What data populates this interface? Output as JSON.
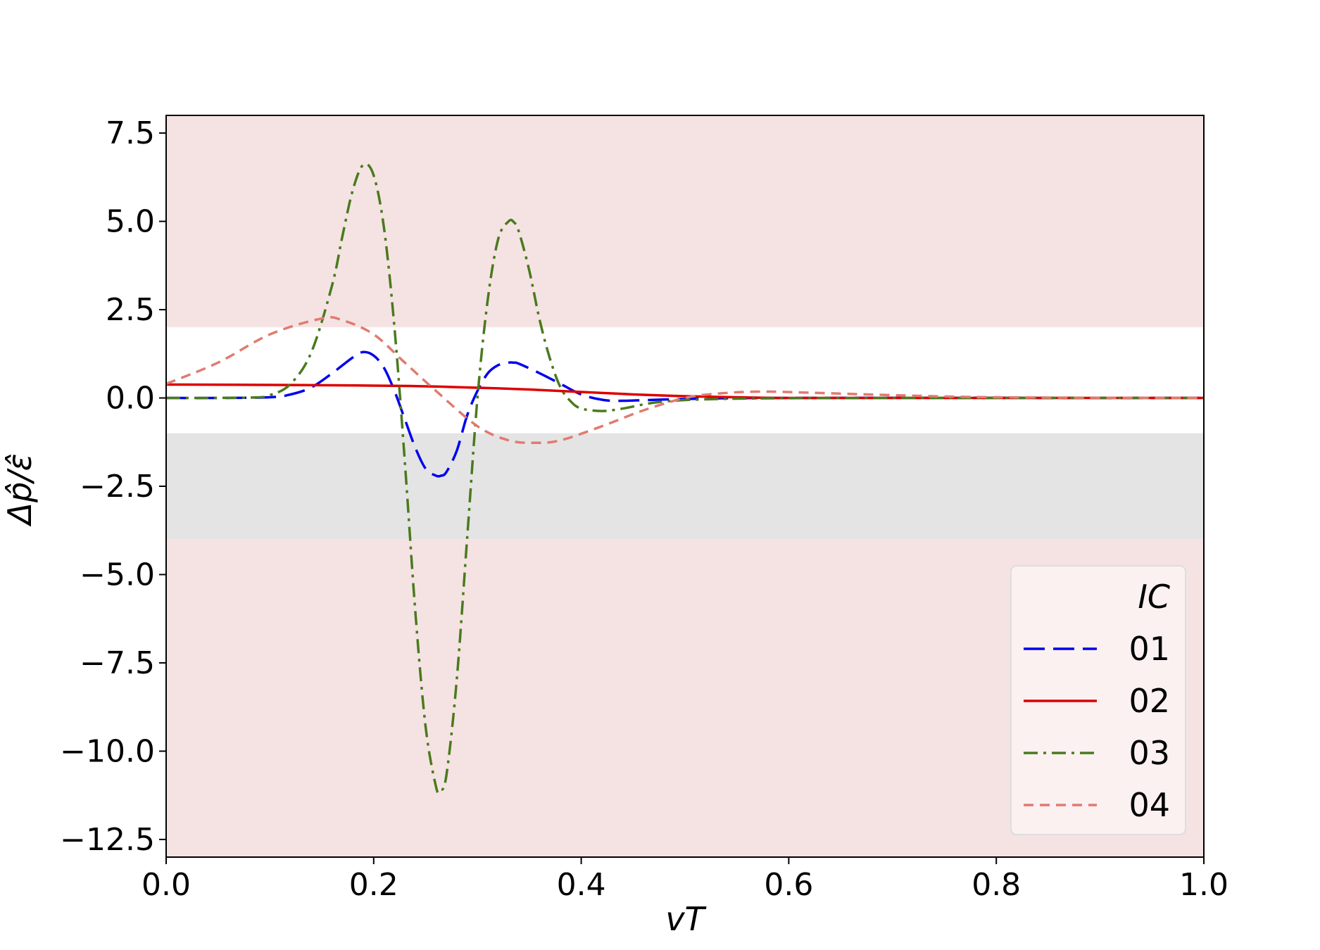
{
  "chart_data": {
    "type": "line",
    "title": "",
    "xlabel": "vT",
    "ylabel": "Δp̂/ε̂",
    "xlim": [
      0.0,
      1.0
    ],
    "ylim": [
      -13.0,
      8.0
    ],
    "xticks": [
      0.0,
      0.2,
      0.4,
      0.6,
      0.8,
      1.0
    ],
    "xtick_labels": [
      "0.0",
      "0.2",
      "0.4",
      "0.6",
      "0.8",
      "1.0"
    ],
    "yticks": [
      7.5,
      5.0,
      2.5,
      0.0,
      -2.5,
      -5.0,
      -7.5,
      -10.0,
      -12.5
    ],
    "ytick_labels": [
      "7.5",
      "5.0",
      "2.5",
      "0.0",
      "−2.5",
      "−5.0",
      "−7.5",
      "−10.0",
      "−12.5"
    ],
    "grid": false,
    "bands": [
      {
        "ymin": 2.0,
        "ymax": 8.0,
        "color": "#f5e3e3"
      },
      {
        "ymin": -1.0,
        "ymax": 2.0,
        "color": "#ffffff"
      },
      {
        "ymin": -4.0,
        "ymax": -1.0,
        "color": "#e4e4e4"
      },
      {
        "ymin": -13.0,
        "ymax": -4.0,
        "color": "#f5e3e3"
      }
    ],
    "legend": {
      "title": "IC",
      "placement": "lower-right"
    },
    "series": [
      {
        "name": "01",
        "color": "#0000ee",
        "dash": "long-dash",
        "x": [
          0.0,
          0.05,
          0.1,
          0.12,
          0.14,
          0.16,
          0.18,
          0.19,
          0.2,
          0.21,
          0.22,
          0.23,
          0.24,
          0.25,
          0.26,
          0.265,
          0.27,
          0.28,
          0.29,
          0.3,
          0.31,
          0.32,
          0.33,
          0.335,
          0.34,
          0.36,
          0.38,
          0.4,
          0.42,
          0.44,
          0.5,
          0.6,
          1.0
        ],
        "y": [
          0.0,
          0.0,
          0.02,
          0.1,
          0.3,
          0.7,
          1.15,
          1.3,
          1.2,
          0.85,
          0.2,
          -0.6,
          -1.4,
          -2.0,
          -2.2,
          -2.2,
          -2.1,
          -1.5,
          -0.5,
          0.2,
          0.7,
          0.93,
          1.0,
          1.0,
          0.97,
          0.7,
          0.4,
          0.1,
          -0.05,
          -0.08,
          -0.03,
          0.0,
          0.0
        ]
      },
      {
        "name": "02",
        "color": "#dd0000",
        "dash": "solid",
        "x": [
          0.0,
          0.1,
          0.2,
          0.25,
          0.3,
          0.35,
          0.4,
          0.45,
          0.5,
          0.55,
          0.6,
          0.7,
          0.8,
          1.0
        ],
        "y": [
          0.38,
          0.37,
          0.35,
          0.33,
          0.29,
          0.24,
          0.17,
          0.1,
          0.05,
          0.02,
          0.0,
          0.0,
          0.0,
          0.0
        ]
      },
      {
        "name": "03",
        "color": "#4a7a1e",
        "dash": "dash-dot",
        "x": [
          0.0,
          0.08,
          0.1,
          0.12,
          0.14,
          0.16,
          0.17,
          0.18,
          0.19,
          0.2,
          0.21,
          0.22,
          0.23,
          0.24,
          0.25,
          0.26,
          0.264,
          0.27,
          0.28,
          0.29,
          0.3,
          0.31,
          0.32,
          0.33,
          0.335,
          0.34,
          0.35,
          0.36,
          0.37,
          0.38,
          0.39,
          0.4,
          0.42,
          0.44,
          0.48,
          0.55,
          0.7,
          1.0
        ],
        "y": [
          0.0,
          0.01,
          0.08,
          0.4,
          1.3,
          3.2,
          4.6,
          5.9,
          6.6,
          6.3,
          4.8,
          2.0,
          -1.8,
          -6.0,
          -9.3,
          -11.0,
          -11.1,
          -10.7,
          -8.0,
          -4.0,
          0.0,
          2.8,
          4.5,
          5.0,
          4.98,
          4.7,
          3.6,
          2.2,
          1.1,
          0.3,
          -0.1,
          -0.3,
          -0.37,
          -0.3,
          -0.1,
          -0.02,
          0.0,
          0.0
        ]
      },
      {
        "name": "04",
        "color": "#e07b70",
        "dash": "short-dash",
        "x": [
          0.0,
          0.05,
          0.1,
          0.15,
          0.17,
          0.2,
          0.23,
          0.26,
          0.3,
          0.33,
          0.355,
          0.38,
          0.42,
          0.46,
          0.5,
          0.53,
          0.57,
          0.62,
          0.7,
          0.8,
          1.0
        ],
        "y": [
          0.4,
          1.0,
          1.8,
          2.25,
          2.2,
          1.8,
          1.0,
          0.2,
          -0.8,
          -1.2,
          -1.27,
          -1.2,
          -0.8,
          -0.35,
          0.0,
          0.12,
          0.18,
          0.15,
          0.08,
          0.02,
          0.0
        ]
      }
    ]
  }
}
